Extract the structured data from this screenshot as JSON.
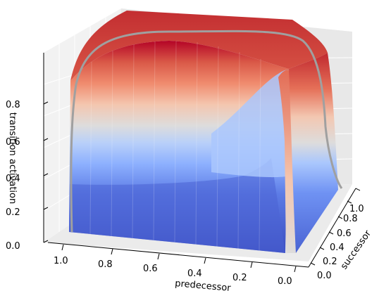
{
  "chart_data": {
    "type": "surface",
    "xlabel": "predecessor",
    "ylabel": "successor",
    "zlabel": "transition activation",
    "x_ticks": [
      "1.0",
      "0.8",
      "0.6",
      "0.4",
      "0.2",
      "0.0"
    ],
    "y_ticks": [
      "0.0",
      "0.2",
      "0.4",
      "0.6",
      "0.8",
      "1.0"
    ],
    "z_ticks": [
      "0.0",
      "0.2",
      "0.4",
      "0.6",
      "0.8"
    ],
    "xlim": [
      0,
      1
    ],
    "ylim": [
      0,
      1
    ],
    "zlim": [
      0,
      0.9
    ],
    "colormap": "coolwarm",
    "grid": true,
    "surface_points": [
      {
        "predecessor": 1.0,
        "successor": 0.0,
        "activation": 0.23
      },
      {
        "predecessor": 0.6,
        "successor": 0.0,
        "activation": 0.23
      },
      {
        "predecessor": 0.2,
        "successor": 0.0,
        "activation": 0.24
      },
      {
        "predecessor": 0.1,
        "successor": 0.0,
        "activation": 0.35
      },
      {
        "predecessor": 0.05,
        "successor": 0.0,
        "activation": 0.8
      },
      {
        "predecessor": 0.0,
        "successor": 0.0,
        "activation": 0.02
      },
      {
        "predecessor": 1.0,
        "successor": 1.0,
        "activation": 0.97
      },
      {
        "predecessor": 0.0,
        "successor": 1.0,
        "activation": 0.97
      }
    ],
    "colors": {
      "low": "#3b4cc0",
      "mid": "#dddddd",
      "high": "#b40426",
      "boundary_curve": "#a0a0a0"
    }
  }
}
